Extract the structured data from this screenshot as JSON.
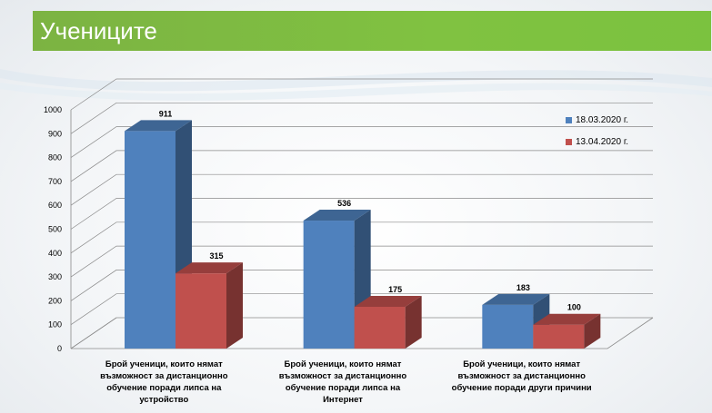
{
  "slide": {
    "title": "Учениците",
    "title_color": "#7cb342"
  },
  "chart_data": {
    "type": "bar",
    "title": "",
    "xlabel": "",
    "ylabel": "",
    "ylim": [
      0,
      1000
    ],
    "yticks": [
      0,
      100,
      200,
      300,
      400,
      500,
      600,
      700,
      800,
      900,
      1000
    ],
    "categories": [
      "Брой ученици, които нямат възможност за дистанционно обучение поради липса на устройство",
      "Брой ученици, които нямат възможност за дистанционно обучение поради липса на Интернет",
      "Брой ученици, които нямат възможност за дистанционно обучение поради други причини"
    ],
    "series": [
      {
        "name": "18.03.2020 г.",
        "values": [
          911,
          536,
          183
        ],
        "color": "#4f81bd"
      },
      {
        "name": "13.04.2020 г.",
        "values": [
          315,
          175,
          100
        ],
        "color": "#c0504d"
      }
    ],
    "legend_position": "right",
    "grid": true,
    "style": "3d"
  }
}
